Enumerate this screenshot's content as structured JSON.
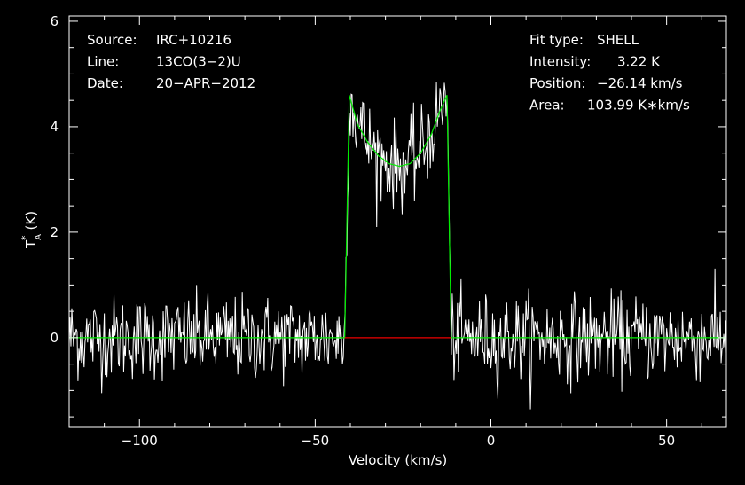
{
  "chart_data": {
    "type": "line",
    "xlabel": "Velocity (km/s)",
    "ylabel": "T",
    "ylabel_sub": "A",
    "ylabel_sup": "*",
    "ylabel_unit": "(K)",
    "xlim": [
      -120,
      67
    ],
    "ylim": [
      -1.7,
      6.1
    ],
    "x_ticks": [
      -100,
      -50,
      0,
      50
    ],
    "x_tick_labels": [
      "−100",
      "−50",
      "0",
      "50"
    ],
    "y_ticks": [
      0,
      2,
      4,
      6
    ],
    "y_tick_labels": [
      "0",
      "2",
      "4",
      "6"
    ],
    "info_left": [
      {
        "key": "Source:",
        "value": "IRC+10216"
      },
      {
        "key": "Line:",
        "value": "13CO(3−2)U"
      },
      {
        "key": "Date:",
        "value": "20−APR−2012"
      }
    ],
    "info_right": [
      {
        "key": "Fit type:",
        "value": "SHELL"
      },
      {
        "key": "Intensity:",
        "value": "3.22 K"
      },
      {
        "key": "Position:",
        "value": "−26.14 km/s"
      },
      {
        "key": "Area:",
        "value": "103.99 K∗km/s"
      }
    ],
    "fit": {
      "name": "SHELL",
      "intensity_K": 3.22,
      "position_kms": -26.14,
      "area_Kkms": 103.99,
      "x": [
        -120,
        -41.6,
        -40.3,
        -38,
        -35,
        -32,
        -29,
        -26,
        -23,
        -20,
        -17,
        -14.5,
        -12.5,
        -11.3,
        67
      ],
      "y": [
        0,
        0,
        4.6,
        4.05,
        3.7,
        3.45,
        3.3,
        3.25,
        3.3,
        3.5,
        3.85,
        4.3,
        4.6,
        0,
        0
      ]
    },
    "baseline_window": [
      -41.6,
      -11.3
    ],
    "series": [
      {
        "name": "spectrum",
        "color": "#ffffff"
      },
      {
        "name": "fit",
        "color": "#00ee00"
      },
      {
        "name": "baseline",
        "color": "#ee0000"
      }
    ],
    "noise_sigma_K": 0.4,
    "channel_width_kms": 0.25,
    "grid": false,
    "legend": "none"
  }
}
